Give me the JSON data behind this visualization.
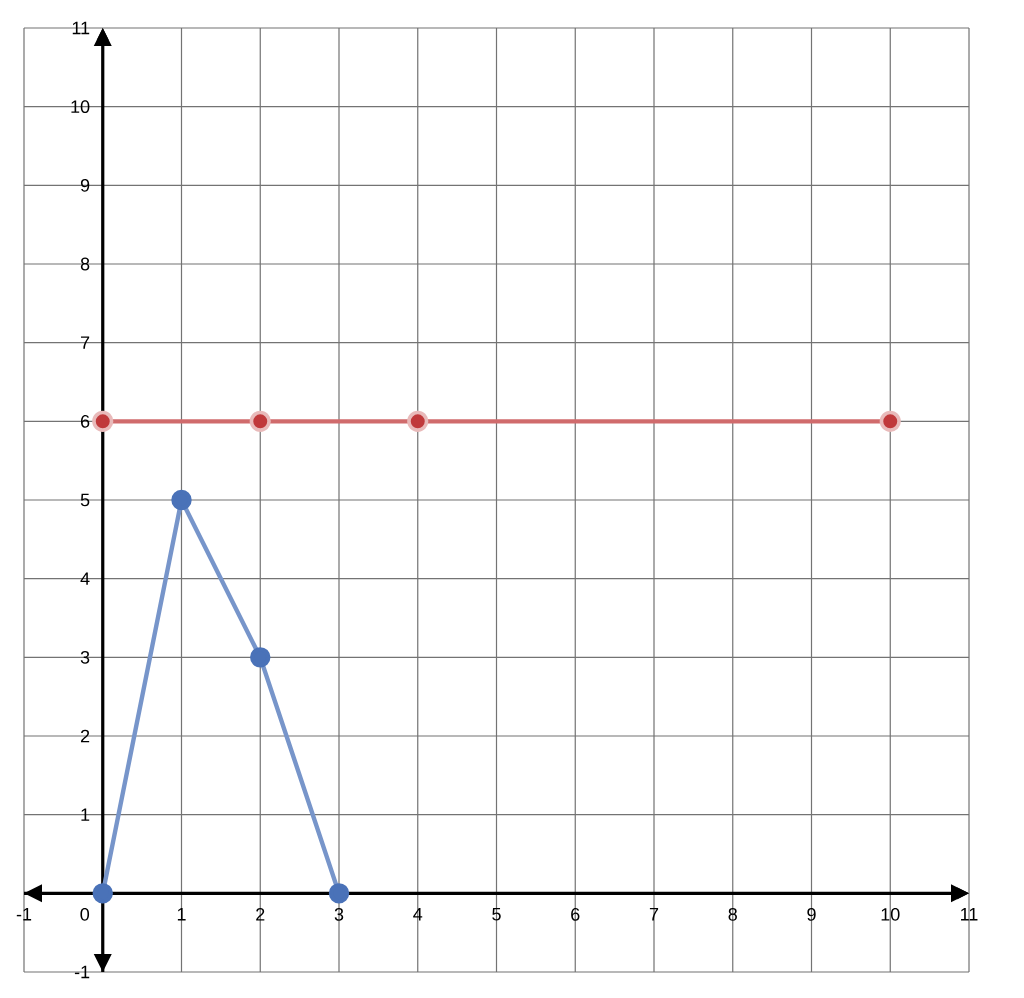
{
  "chart_data": {
    "type": "line",
    "xlim": [
      -1,
      11
    ],
    "ylim": [
      -1,
      11
    ],
    "xticks": [
      -1,
      0,
      1,
      2,
      3,
      4,
      5,
      6,
      7,
      8,
      9,
      10,
      11
    ],
    "yticks": [
      -1,
      1,
      2,
      3,
      4,
      5,
      6,
      7,
      8,
      9,
      10,
      11
    ],
    "grid": true,
    "marker": "circle",
    "line_style": "solid",
    "series": [
      {
        "color": "#4a72b8",
        "x": [
          0,
          1,
          2,
          3
        ],
        "values": [
          0,
          5,
          3,
          0
        ]
      },
      {
        "color": "#c0393b",
        "x": [
          0,
          2,
          4,
          10
        ],
        "values": [
          6,
          6,
          6,
          6
        ]
      }
    ]
  }
}
